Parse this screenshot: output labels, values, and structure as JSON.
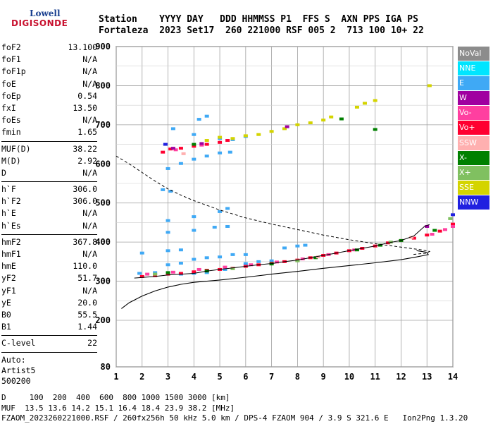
{
  "logo": {
    "line1": "Lowell",
    "line2": "DIGISONDE"
  },
  "header": {
    "line1": "Station    YYYY DAY   DDD HHMMSS P1  FFS S  AXN PPS IGA PS",
    "line2": "Fortaleza  2023 Set17  260 221000 RSF 005 2  713 100 10+ 22"
  },
  "params": {
    "group1": [
      {
        "name": "foF2",
        "value": "13.100"
      },
      {
        "name": "foF1",
        "value": "N/A"
      },
      {
        "name": "foF1p",
        "value": "N/A"
      },
      {
        "name": "foE",
        "value": "N/A"
      },
      {
        "name": "foEp",
        "value": "0.54"
      },
      {
        "name": "fxI",
        "value": "13.50"
      },
      {
        "name": "foEs",
        "value": "N/A"
      },
      {
        "name": "fmin",
        "value": "1.65"
      }
    ],
    "group2": [
      {
        "name": "MUF(D)",
        "value": "38.22"
      },
      {
        "name": "M(D)",
        "value": "2.92"
      },
      {
        "name": "D",
        "value": "N/A"
      }
    ],
    "group3": [
      {
        "name": "h`F",
        "value": "306.0"
      },
      {
        "name": "h`F2",
        "value": "306.0"
      },
      {
        "name": "h`E",
        "value": "N/A"
      },
      {
        "name": "h`Es",
        "value": "N/A"
      }
    ],
    "group4": [
      {
        "name": "hmF2",
        "value": "367.8"
      },
      {
        "name": "hmF1",
        "value": "N/A"
      },
      {
        "name": "hmE",
        "value": "110.0"
      },
      {
        "name": "yF2",
        "value": "51.7"
      },
      {
        "name": "yF1",
        "value": "N/A"
      },
      {
        "name": "yE",
        "value": "20.0"
      },
      {
        "name": "B0",
        "value": "55.5"
      },
      {
        "name": "B1",
        "value": "1.44"
      }
    ],
    "group5": [
      {
        "name": "C-level",
        "value": "22"
      }
    ],
    "auto": [
      "Auto:",
      "Artist5",
      "500200"
    ]
  },
  "legend": [
    {
      "label": "NoVal",
      "color": "#8c8c8c"
    },
    {
      "label": "NNE",
      "color": "#00e5ff"
    },
    {
      "label": "E",
      "color": "#3fa9f5"
    },
    {
      "label": "W",
      "color": "#a000a0"
    },
    {
      "label": "Vo-",
      "color": "#ff3fa0"
    },
    {
      "label": "Vo+",
      "color": "#ff0030"
    },
    {
      "label": "SSW",
      "color": "#ffb0b0"
    },
    {
      "label": "X-",
      "color": "#008000"
    },
    {
      "label": "X+",
      "color": "#80c060"
    },
    {
      "label": "SSE",
      "color": "#d4d400"
    },
    {
      "label": "NNW",
      "color": "#2020e0"
    }
  ],
  "footer": {
    "line1": "D     100  200  400  600  800 1000 1500 3000 [km]",
    "line2": "MUF  13.5 13.6 14.2 15.1 16.4 18.4 23.9 38.2 [MHz]",
    "line3": "FZAOM_2023260221000.RSF / 260fx256h 50 kHz 5.0 km / DPS-4 FZAOM 904 / 3.9 S 321.6 E   Ion2Png 1.3.20"
  },
  "chart_data": {
    "type": "scatter",
    "x_ticks": [
      "1",
      "2",
      "3",
      "4",
      "5",
      "6",
      "7",
      "8",
      "9",
      "10",
      "11",
      "12",
      "13",
      "14"
    ],
    "y_ticks": [
      "80",
      "200",
      "300",
      "400",
      "500",
      "600",
      "700",
      "800",
      "900"
    ],
    "xlim": [
      1,
      14
    ],
    "ylim": [
      80,
      900
    ],
    "grid": true,
    "echo_series": [
      {
        "name": "E",
        "color": "#3fa9f5",
        "points": [
          [
            1.9,
            320
          ],
          [
            2.5,
            322
          ],
          [
            3.0,
            320
          ],
          [
            3.5,
            318
          ],
          [
            4.0,
            320
          ],
          [
            4.5,
            322
          ],
          [
            5.2,
            330
          ],
          [
            6.0,
            345
          ],
          [
            6.5,
            350
          ],
          [
            7.0,
            352
          ],
          [
            7.5,
            385
          ],
          [
            8.0,
            390
          ],
          [
            8.3,
            392
          ],
          [
            3.0,
            342
          ],
          [
            3.5,
            346
          ],
          [
            4.0,
            356
          ],
          [
            4.5,
            360
          ],
          [
            5.0,
            362
          ],
          [
            5.5,
            368
          ],
          [
            6.0,
            368
          ],
          [
            2.0,
            372
          ],
          [
            3.0,
            378
          ],
          [
            3.5,
            380
          ],
          [
            3.0,
            425
          ],
          [
            4.0,
            430
          ],
          [
            4.8,
            438
          ],
          [
            5.3,
            440
          ],
          [
            3.0,
            455
          ],
          [
            4.0,
            465
          ],
          [
            5.0,
            478
          ],
          [
            5.3,
            486
          ],
          [
            2.8,
            534
          ],
          [
            3.1,
            530
          ],
          [
            3.0,
            588
          ],
          [
            3.5,
            601
          ],
          [
            4.0,
            612
          ],
          [
            4.5,
            620
          ],
          [
            5.0,
            628
          ],
          [
            5.4,
            630
          ],
          [
            3.2,
            690
          ],
          [
            4.0,
            675
          ],
          [
            4.2,
            714
          ],
          [
            4.5,
            722
          ],
          [
            5.0,
            665
          ],
          [
            5.5,
            662
          ],
          [
            6.0,
            670
          ]
        ]
      },
      {
        "name": "Vo+",
        "color": "#ff0030",
        "points": [
          [
            2.0,
            312
          ],
          [
            2.5,
            314
          ],
          [
            3.0,
            318
          ],
          [
            3.5,
            320
          ],
          [
            4.0,
            324
          ],
          [
            4.5,
            328
          ],
          [
            5.0,
            330
          ],
          [
            5.5,
            333
          ],
          [
            6.0,
            338
          ],
          [
            6.5,
            342
          ],
          [
            7.0,
            346
          ],
          [
            7.5,
            350
          ],
          [
            8.0,
            354
          ],
          [
            8.5,
            360
          ],
          [
            9.0,
            366
          ],
          [
            9.5,
            372
          ],
          [
            10.0,
            378
          ],
          [
            10.5,
            384
          ],
          [
            11.0,
            390
          ],
          [
            11.5,
            398
          ],
          [
            12.0,
            404
          ],
          [
            12.5,
            410
          ],
          [
            13.0,
            418
          ],
          [
            13.5,
            428
          ],
          [
            14.0,
            446
          ],
          [
            2.8,
            630
          ],
          [
            3.1,
            638
          ],
          [
            3.5,
            640
          ],
          [
            4.0,
            645
          ],
          [
            4.5,
            650
          ],
          [
            5.0,
            655
          ],
          [
            5.3,
            660
          ]
        ]
      },
      {
        "name": "Vo-",
        "color": "#ff3fa0",
        "points": [
          [
            2.2,
            318
          ],
          [
            3.2,
            323
          ],
          [
            4.2,
            330
          ],
          [
            5.2,
            336
          ],
          [
            6.2,
            342
          ],
          [
            7.2,
            349
          ],
          [
            8.2,
            357
          ],
          [
            9.2,
            368
          ],
          [
            10.2,
            380
          ],
          [
            13.2,
            420
          ],
          [
            13.7,
            432
          ],
          [
            14.0,
            440
          ],
          [
            3.3,
            636
          ],
          [
            4.3,
            648
          ]
        ]
      },
      {
        "name": "X-",
        "color": "#008000",
        "points": [
          [
            3.0,
            322
          ],
          [
            4.5,
            326
          ],
          [
            7.0,
            344
          ],
          [
            8.7,
            360
          ],
          [
            10.3,
            380
          ],
          [
            11.2,
            392
          ],
          [
            12.0,
            404
          ],
          [
            13.3,
            430
          ],
          [
            9.7,
            715
          ],
          [
            11.0,
            688
          ],
          [
            4.0,
            650
          ]
        ]
      },
      {
        "name": "X+",
        "color": "#80c060",
        "points": [
          [
            2.5,
            318
          ],
          [
            5.5,
            332
          ],
          [
            8.0,
            352
          ],
          [
            11.6,
            400
          ],
          [
            13.9,
            460
          ]
        ]
      },
      {
        "name": "SSE",
        "color": "#d4d400",
        "points": [
          [
            4.5,
            660
          ],
          [
            5.0,
            668
          ],
          [
            5.5,
            665
          ],
          [
            6.0,
            672
          ],
          [
            6.5,
            675
          ],
          [
            7.0,
            683
          ],
          [
            7.5,
            690
          ],
          [
            8.0,
            700
          ],
          [
            8.5,
            705
          ],
          [
            9.0,
            712
          ],
          [
            9.3,
            720
          ],
          [
            10.3,
            745
          ],
          [
            10.6,
            755
          ],
          [
            11.0,
            762
          ],
          [
            13.1,
            800
          ]
        ]
      },
      {
        "name": "W",
        "color": "#a000a0",
        "points": [
          [
            3.2,
            640
          ],
          [
            4.3,
            652
          ],
          [
            7.6,
            695
          ],
          [
            13.0,
            440
          ]
        ]
      },
      {
        "name": "SSW",
        "color": "#ffb0b0",
        "points": [
          [
            3.6,
            626
          ],
          [
            8.8,
            362
          ],
          [
            12.4,
            412
          ]
        ]
      },
      {
        "name": "NNW",
        "color": "#2020e0",
        "points": [
          [
            2.9,
            650
          ],
          [
            14.0,
            470
          ]
        ]
      }
    ],
    "trace_line": [
      [
        1.7,
        308
      ],
      [
        2.5,
        312
      ],
      [
        3.0,
        316
      ],
      [
        3.5,
        318
      ],
      [
        4.0,
        320
      ],
      [
        4.5,
        326
      ],
      [
        5.0,
        330
      ],
      [
        5.5,
        334
      ],
      [
        6.0,
        338
      ],
      [
        6.5,
        342
      ],
      [
        7.0,
        345
      ],
      [
        7.5,
        350
      ],
      [
        8.0,
        354
      ],
      [
        8.5,
        360
      ],
      [
        9.0,
        366
      ],
      [
        9.5,
        372
      ],
      [
        10.0,
        378
      ],
      [
        10.5,
        384
      ],
      [
        11.0,
        390
      ],
      [
        11.5,
        398
      ],
      [
        12.0,
        404
      ],
      [
        12.5,
        416
      ],
      [
        12.9,
        440
      ],
      [
        13.1,
        445
      ]
    ],
    "profile_line": [
      [
        1.2,
        230
      ],
      [
        1.5,
        245
      ],
      [
        2.0,
        262
      ],
      [
        2.5,
        275
      ],
      [
        3.0,
        285
      ],
      [
        3.5,
        292
      ],
      [
        4.0,
        297
      ],
      [
        5.0,
        303
      ],
      [
        6.0,
        310
      ],
      [
        7.0,
        318
      ],
      [
        8.0,
        325
      ],
      [
        9.0,
        333
      ],
      [
        10.0,
        340
      ],
      [
        11.0,
        347
      ],
      [
        12.0,
        355
      ],
      [
        12.6,
        362
      ],
      [
        13.05,
        368
      ],
      [
        13.0,
        374
      ],
      [
        12.6,
        378
      ]
    ],
    "dashed_line": [
      [
        1.0,
        620
      ],
      [
        1.5,
        600
      ],
      [
        2.0,
        578
      ],
      [
        2.5,
        556
      ],
      [
        3.0,
        536
      ],
      [
        3.5,
        520
      ],
      [
        4.0,
        506
      ],
      [
        5.0,
        482
      ],
      [
        6.0,
        462
      ],
      [
        7.0,
        446
      ],
      [
        8.0,
        432
      ],
      [
        9.0,
        418
      ],
      [
        10.0,
        406
      ],
      [
        11.0,
        396
      ],
      [
        12.0,
        387
      ],
      [
        12.8,
        380
      ],
      [
        13.1,
        376
      ],
      [
        13.0,
        372
      ],
      [
        12.4,
        368
      ]
    ]
  }
}
